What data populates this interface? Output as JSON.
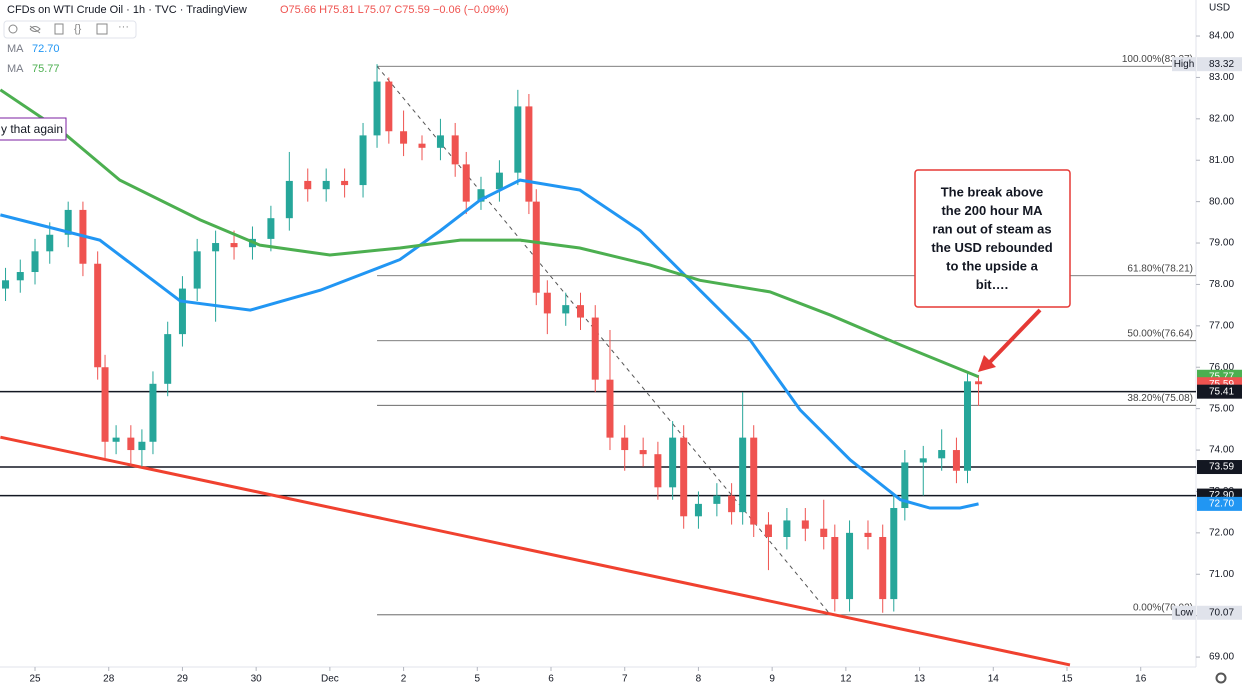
{
  "header": {
    "title": "CFDs on WTI Crude Oil · 1h · TVC · TradingView",
    "ohlc": "O75.66 H75.81 L75.07 C75.59 −0.06 (−0.09%)",
    "currency": "USD",
    "indicators": [
      {
        "label": "MA",
        "value": "72.70",
        "color": "#2196f3"
      },
      {
        "label": "MA",
        "value": "75.77",
        "color": "#4caf50"
      }
    ]
  },
  "note": "y that again",
  "annotation": {
    "lines": [
      "The break above",
      "the 200 hour MA",
      "ran out of steam as",
      "the USD rebounded",
      "to the upside a",
      "bit…."
    ]
  },
  "chart_data": {
    "type": "candlestick",
    "grid": false,
    "xlim": [
      -0.475,
      15.75
    ],
    "ylim": [
      68.76,
      84.87
    ],
    "xticks": [
      {
        "value": 0,
        "label": "25"
      },
      {
        "value": 1,
        "label": "28"
      },
      {
        "value": 2,
        "label": "29"
      },
      {
        "value": 3,
        "label": "30"
      },
      {
        "value": 4,
        "label": "Dec"
      },
      {
        "value": 5,
        "label": "2"
      },
      {
        "value": 6,
        "label": "5"
      },
      {
        "value": 7,
        "label": "6"
      },
      {
        "value": 8,
        "label": "7"
      },
      {
        "value": 9,
        "label": "8"
      },
      {
        "value": 10,
        "label": "9"
      },
      {
        "value": 11,
        "label": "12"
      },
      {
        "value": 12,
        "label": "13"
      },
      {
        "value": 13,
        "label": "14"
      },
      {
        "value": 14,
        "label": "15"
      },
      {
        "value": 15,
        "label": "16"
      }
    ],
    "yticks": [
      {
        "value": 69,
        "label": "69.00"
      },
      {
        "value": 70,
        "label": "70.00"
      },
      {
        "value": 71,
        "label": "71.00"
      },
      {
        "value": 72,
        "label": "72.00"
      },
      {
        "value": 73,
        "label": "73.00"
      },
      {
        "value": 74,
        "label": "74.00"
      },
      {
        "value": 75,
        "label": "75.00"
      },
      {
        "value": 76,
        "label": "76.00"
      },
      {
        "value": 77,
        "label": "77.00"
      },
      {
        "value": 78,
        "label": "78.00"
      },
      {
        "value": 79,
        "label": "79.00"
      },
      {
        "value": 80,
        "label": "80.00"
      },
      {
        "value": 81,
        "label": "81.00"
      },
      {
        "value": 82,
        "label": "82.00"
      },
      {
        "value": 83,
        "label": "83.00"
      },
      {
        "value": 84,
        "label": "84.00"
      }
    ],
    "up_color": "#26a69a",
    "down_color": "#ef5350",
    "x": [
      -0.4,
      -0.2,
      0.0,
      0.2,
      0.45,
      0.65,
      0.85,
      0.95,
      1.1,
      1.3,
      1.45,
      1.6,
      1.8,
      2.0,
      2.2,
      2.45,
      2.7,
      2.95,
      3.2,
      3.45,
      3.7,
      3.95,
      4.2,
      4.45,
      4.64,
      4.8,
      5.0,
      5.25,
      5.5,
      5.7,
      5.85,
      6.05,
      6.3,
      6.55,
      6.7,
      6.8,
      6.95,
      7.2,
      7.4,
      7.6,
      7.8,
      8.0,
      8.25,
      8.45,
      8.65,
      8.8,
      9.0,
      9.25,
      9.45,
      9.6,
      9.75,
      9.95,
      10.2,
      10.45,
      10.7,
      10.85,
      11.05,
      11.3,
      11.5,
      11.65,
      11.8,
      12.05,
      12.3,
      12.5,
      12.65,
      12.8
    ],
    "open": [
      77.9,
      78.1,
      78.3,
      78.8,
      79.2,
      79.8,
      78.5,
      76.0,
      74.2,
      74.3,
      74.0,
      74.2,
      75.6,
      76.8,
      77.9,
      78.8,
      79.0,
      78.9,
      79.1,
      79.6,
      80.5,
      80.3,
      80.5,
      80.4,
      81.6,
      82.9,
      81.7,
      81.4,
      81.3,
      81.6,
      80.9,
      80.0,
      80.3,
      80.7,
      82.3,
      80.0,
      77.8,
      77.3,
      77.5,
      77.2,
      75.7,
      74.3,
      74.0,
      73.9,
      73.1,
      74.3,
      72.4,
      72.7,
      72.9,
      72.5,
      74.3,
      72.2,
      71.9,
      72.3,
      72.1,
      71.9,
      70.4,
      72.0,
      71.9,
      70.4,
      72.6,
      73.7,
      73.8,
      74.0,
      73.5,
      75.66
    ],
    "high": [
      78.4,
      78.6,
      79.1,
      79.5,
      80.0,
      80.0,
      78.8,
      76.3,
      74.6,
      74.6,
      74.5,
      75.9,
      77.1,
      78.2,
      79.1,
      79.3,
      79.3,
      79.4,
      79.9,
      81.2,
      80.8,
      80.8,
      80.8,
      81.9,
      83.32,
      83.0,
      82.2,
      81.6,
      82.0,
      81.9,
      81.2,
      80.6,
      81.0,
      82.7,
      82.6,
      80.3,
      78.1,
      77.8,
      77.8,
      77.5,
      76.9,
      74.6,
      74.3,
      74.2,
      74.7,
      74.6,
      73.0,
      73.2,
      73.2,
      75.4,
      74.6,
      72.5,
      72.6,
      72.6,
      72.8,
      72.2,
      72.3,
      72.3,
      72.2,
      72.9,
      74.0,
      74.1,
      74.5,
      74.3,
      75.9,
      75.81
    ],
    "low": [
      77.6,
      77.8,
      78.0,
      78.5,
      78.9,
      78.2,
      75.7,
      73.8,
      73.9,
      73.6,
      73.6,
      73.9,
      75.3,
      76.5,
      77.6,
      77.1,
      78.6,
      78.6,
      78.8,
      79.3,
      80.0,
      80.0,
      80.1,
      80.1,
      81.3,
      81.4,
      81.1,
      81.0,
      81.0,
      80.6,
      79.7,
      79.8,
      80.0,
      80.4,
      79.7,
      77.5,
      76.8,
      77.0,
      76.9,
      75.4,
      74.0,
      73.5,
      73.6,
      72.8,
      72.8,
      72.1,
      72.1,
      72.4,
      72.2,
      72.2,
      71.9,
      71.1,
      71.6,
      71.8,
      71.6,
      70.1,
      70.1,
      71.6,
      70.07,
      70.1,
      72.3,
      72.9,
      73.5,
      73.2,
      73.2,
      75.07
    ],
    "close": [
      78.1,
      78.3,
      78.8,
      79.2,
      79.8,
      78.5,
      76.0,
      74.2,
      74.3,
      74.0,
      74.2,
      75.6,
      76.8,
      77.9,
      78.8,
      79.0,
      78.9,
      79.1,
      79.6,
      80.5,
      80.3,
      80.5,
      80.4,
      81.6,
      82.9,
      81.7,
      81.4,
      81.3,
      81.6,
      80.9,
      80.0,
      80.3,
      80.7,
      82.3,
      80.0,
      77.8,
      77.3,
      77.5,
      77.2,
      75.7,
      74.3,
      74.0,
      73.9,
      73.1,
      74.3,
      72.4,
      72.7,
      72.9,
      72.5,
      74.3,
      72.2,
      71.9,
      72.3,
      72.1,
      71.9,
      70.4,
      72.0,
      71.9,
      70.4,
      72.6,
      73.7,
      73.8,
      74.0,
      73.5,
      75.66,
      75.59
    ],
    "lines": [
      {
        "name": "MA",
        "color": "#2196f3",
        "x": [
          -0.47,
          0.88,
          1.97,
          2.92,
          3.87,
          4.95,
          5.5,
          6.04,
          6.58,
          7.39,
          8.21,
          9.02,
          9.7,
          10.38,
          11.06,
          11.74,
          12.14,
          12.55,
          12.8
        ],
        "values": [
          79.68,
          79.07,
          77.6,
          77.38,
          77.86,
          78.6,
          79.3,
          80.04,
          80.52,
          80.28,
          79.3,
          77.86,
          76.66,
          74.97,
          73.76,
          72.8,
          72.6,
          72.6,
          72.7
        ]
      },
      {
        "name": "MA",
        "color": "#4caf50",
        "x": [
          -0.47,
          0.34,
          1.15,
          2.24,
          3.05,
          4.0,
          4.95,
          5.77,
          6.58,
          7.39,
          8.34,
          9.02,
          9.97,
          10.79,
          11.74,
          12.8
        ],
        "values": [
          82.7,
          81.73,
          80.52,
          79.56,
          78.95,
          78.71,
          78.88,
          79.07,
          79.07,
          78.88,
          78.47,
          78.1,
          77.82,
          77.26,
          76.54,
          75.77
        ]
      }
    ],
    "trendlines": [
      {
        "color": "#f0412f",
        "dash": false,
        "x": [
          -0.47,
          14.04
        ],
        "values": [
          74.31,
          68.81
        ]
      },
      {
        "color": "#555555",
        "dash": true,
        "x": [
          4.64,
          10.76
        ],
        "values": [
          83.27,
          70.09
        ]
      }
    ],
    "levels": [
      75.41,
      73.59,
      72.9
    ],
    "fib": [
      {
        "value": 83.27,
        "label": "100.00%(83.27)"
      },
      {
        "value": 78.21,
        "label": "61.80%(78.21)"
      },
      {
        "value": 76.64,
        "label": "50.00%(76.64)"
      },
      {
        "value": 75.08,
        "label": "38.20%(75.08)"
      },
      {
        "value": 70.02,
        "label": "0.00%(70.02)"
      }
    ],
    "price_labels": [
      {
        "value": 83.32,
        "label": "83.32",
        "color": "#e0e3eb",
        "tag": "High"
      },
      {
        "value": 75.77,
        "label": "75.77",
        "color": "#4caf50"
      },
      {
        "value": 75.59,
        "label": "75.59",
        "color": "#ef5350"
      },
      {
        "value": 75.41,
        "label": "75.41",
        "color": "#131722"
      },
      {
        "value": 73.59,
        "label": "73.59",
        "color": "#131722"
      },
      {
        "value": 72.9,
        "label": "72.90",
        "color": "#131722"
      },
      {
        "value": 72.7,
        "label": "72.70",
        "color": "#2196f3"
      },
      {
        "value": 70.07,
        "label": "70.07",
        "color": "#e0e3eb",
        "tag": "Low"
      }
    ]
  }
}
